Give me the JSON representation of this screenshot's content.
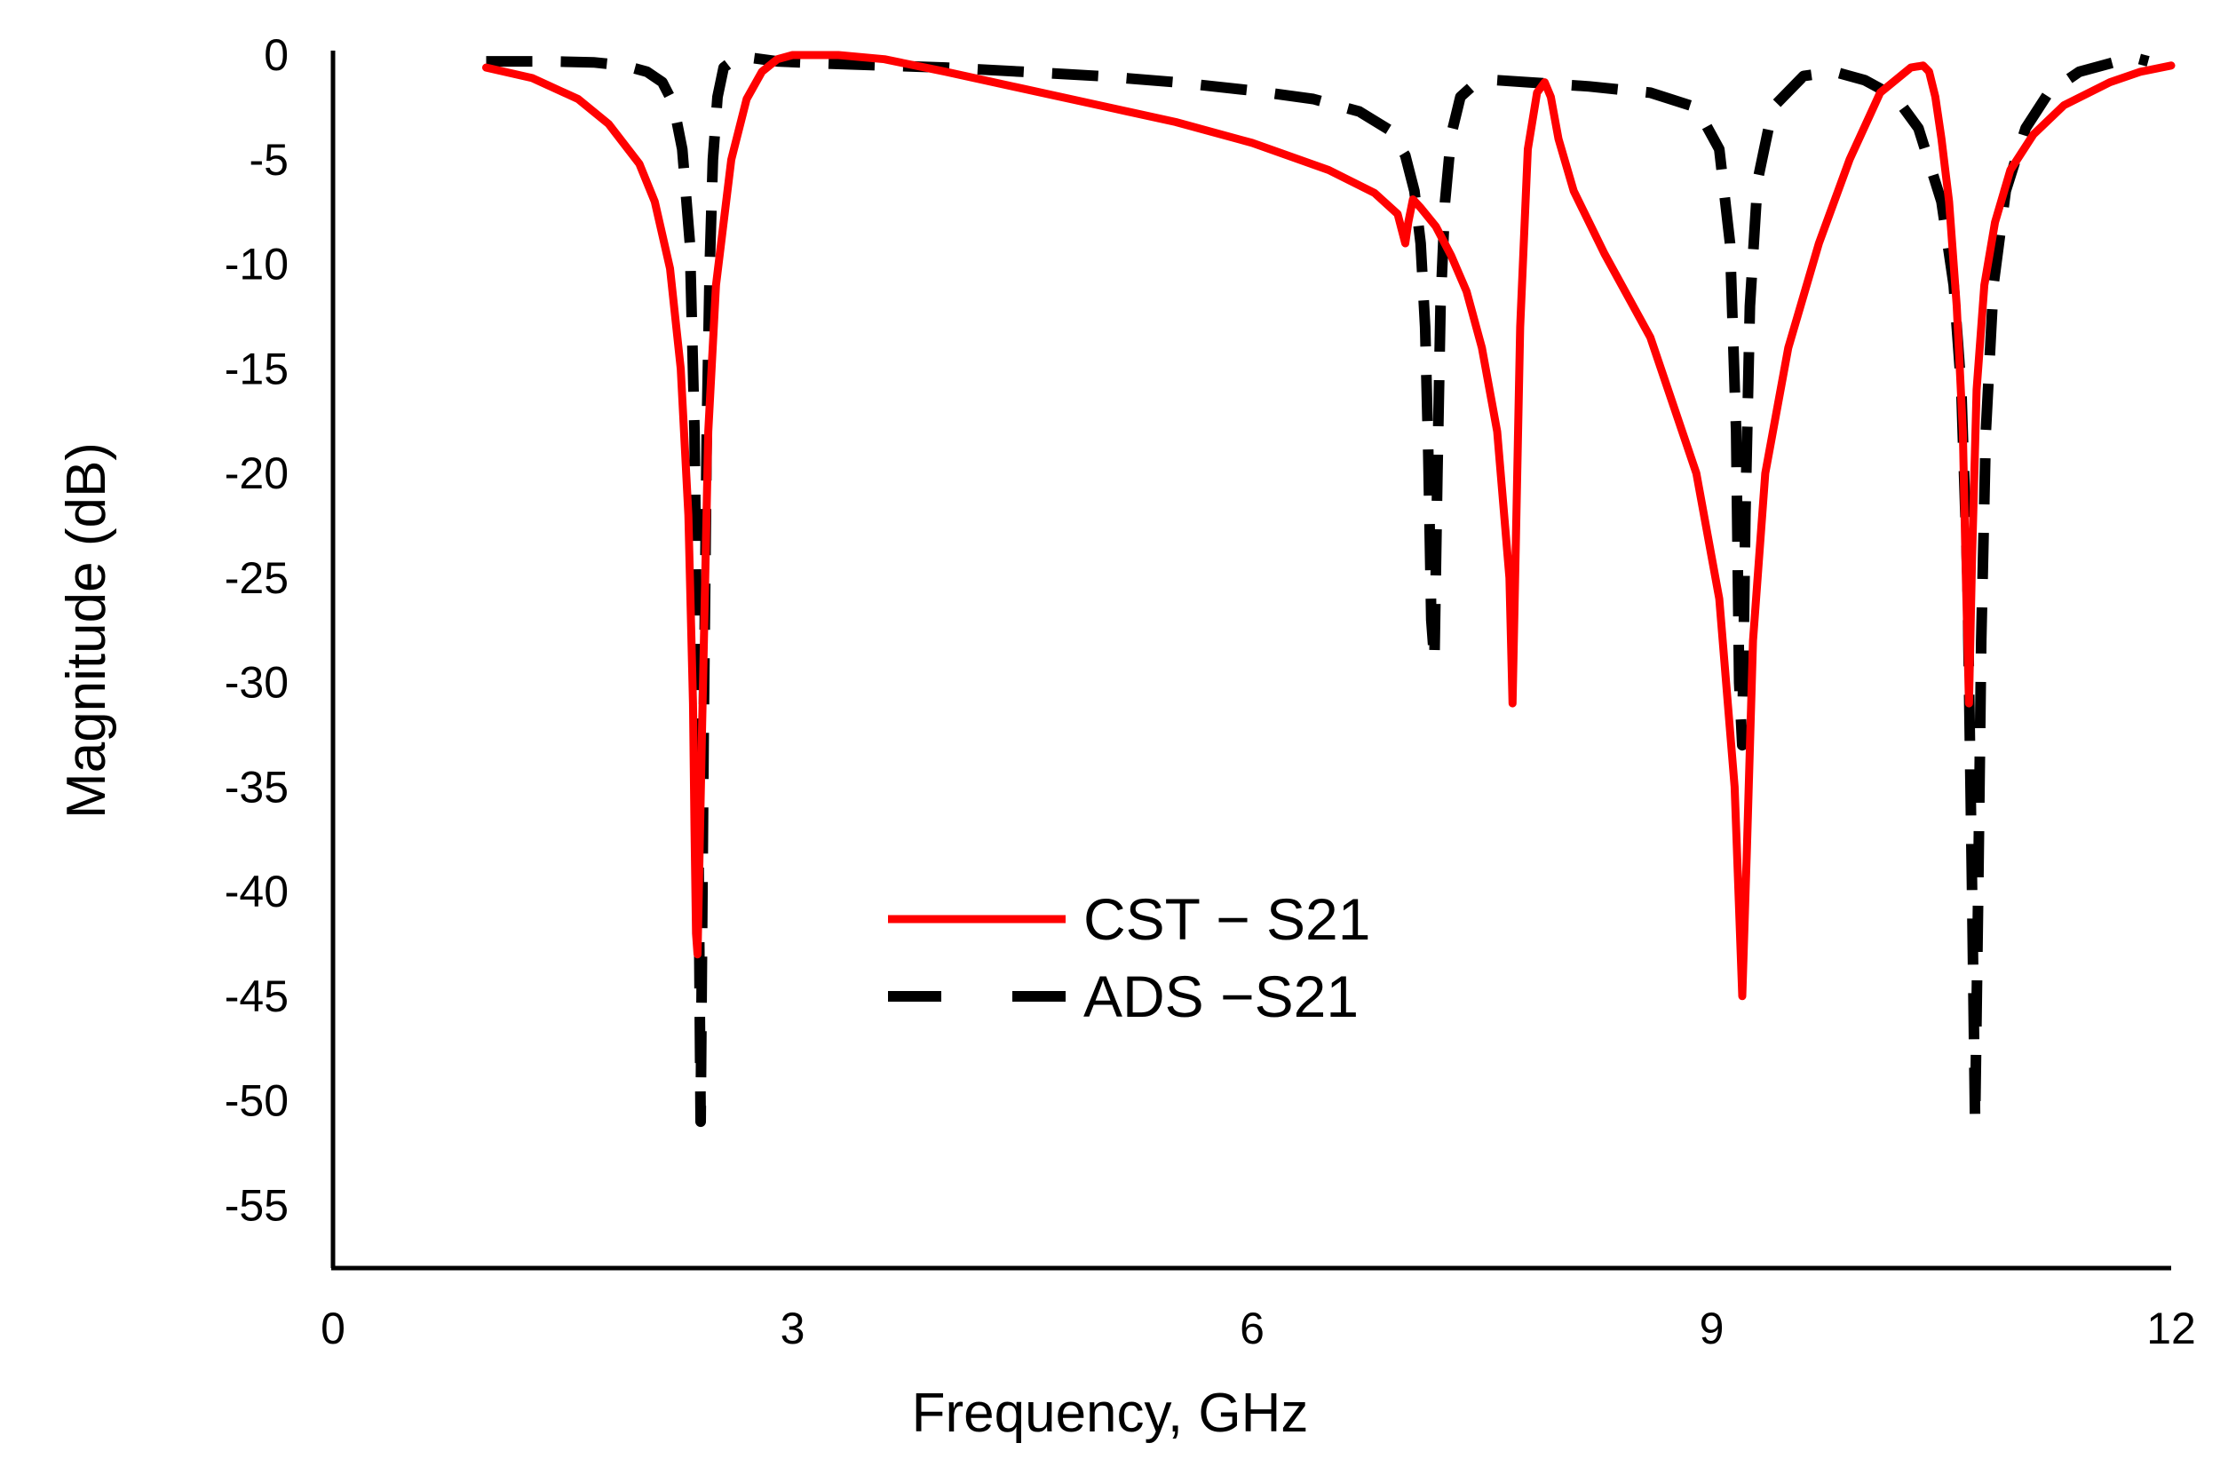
{
  "chart_data": {
    "type": "line",
    "title": "",
    "xlabel": "Frequency, GHz",
    "ylabel": "Magnitude (dB)",
    "xlim": [
      0,
      12
    ],
    "ylim": [
      -58,
      0
    ],
    "xticks": [
      0,
      3,
      6,
      9,
      12
    ],
    "yticks": [
      0,
      -5,
      -10,
      -15,
      -20,
      -25,
      -30,
      -35,
      -40,
      -45,
      -50,
      -55
    ],
    "grid": false,
    "legend_position": "center",
    "series": [
      {
        "name": "CST − S21",
        "color": "#ff0000",
        "style": "solid",
        "x": [
          1.0,
          1.3,
          1.6,
          1.8,
          2.0,
          2.1,
          2.2,
          2.27,
          2.32,
          2.35,
          2.36,
          2.37,
          2.38,
          2.41,
          2.45,
          2.5,
          2.6,
          2.7,
          2.8,
          2.9,
          3.0,
          3.1,
          3.3,
          3.6,
          4.0,
          4.5,
          5.0,
          5.5,
          6.0,
          6.5,
          6.8,
          6.95,
          7.0,
          7.02,
          7.05,
          7.1,
          7.2,
          7.3,
          7.4,
          7.5,
          7.6,
          7.68,
          7.7,
          7.72,
          7.75,
          7.8,
          7.86,
          7.91,
          7.95,
          8.0,
          8.1,
          8.3,
          8.6,
          8.9,
          9.05,
          9.15,
          9.2,
          9.23,
          9.27,
          9.35,
          9.5,
          9.7,
          9.9,
          10.1,
          10.3,
          10.38,
          10.42,
          10.46,
          10.5,
          10.55,
          10.6,
          10.64,
          10.66,
          10.68,
          10.7,
          10.73,
          10.78,
          10.85,
          10.95,
          11.1,
          11.3,
          11.6,
          11.8,
          12.0
        ],
        "y": [
          -0.6,
          -1.1,
          -2.1,
          -3.3,
          -5.2,
          -7.0,
          -10.2,
          -15.0,
          -22.0,
          -31.0,
          -37.0,
          -42.0,
          -43.0,
          -32.0,
          -18.0,
          -11.0,
          -5.0,
          -2.1,
          -0.8,
          -0.2,
          0.0,
          0.0,
          0.0,
          -0.2,
          -0.8,
          -1.6,
          -2.4,
          -3.2,
          -4.2,
          -5.5,
          -6.6,
          -7.6,
          -9.0,
          -8.0,
          -6.9,
          -7.3,
          -8.2,
          -9.6,
          -11.3,
          -14.0,
          -18.0,
          -25.0,
          -31.0,
          -24.0,
          -13.0,
          -4.5,
          -1.8,
          -1.3,
          -2.0,
          -4.0,
          -6.5,
          -9.5,
          -13.5,
          -20.0,
          -26.0,
          -35.0,
          -45.0,
          -38.0,
          -28.0,
          -20.0,
          -14.0,
          -9.0,
          -5.0,
          -1.8,
          -0.6,
          -0.5,
          -0.8,
          -2.0,
          -4.0,
          -7.0,
          -12.0,
          -18.0,
          -25.0,
          -31.0,
          -24.0,
          -16.0,
          -11.0,
          -8.0,
          -5.5,
          -3.8,
          -2.4,
          -1.3,
          -0.8,
          -0.5
        ]
      },
      {
        "name": "ADS −S21",
        "color": "#000000",
        "style": "dashed",
        "x": [
          1.0,
          1.4,
          1.7,
          1.9,
          2.05,
          2.15,
          2.22,
          2.28,
          2.33,
          2.36,
          2.38,
          2.4,
          2.42,
          2.44,
          2.46,
          2.48,
          2.51,
          2.55,
          2.62,
          2.7,
          2.9,
          3.2,
          3.6,
          4.0,
          4.5,
          5.0,
          5.5,
          6.0,
          6.4,
          6.7,
          6.9,
          7.0,
          7.06,
          7.1,
          7.13,
          7.15,
          7.17,
          7.19,
          7.21,
          7.23,
          7.26,
          7.3,
          7.36,
          7.45,
          7.6,
          7.8,
          8.2,
          8.6,
          8.9,
          9.05,
          9.12,
          9.16,
          9.18,
          9.2,
          9.22,
          9.25,
          9.3,
          9.4,
          9.6,
          9.8,
          10.0,
          10.2,
          10.35,
          10.5,
          10.58,
          10.63,
          10.67,
          10.7,
          10.72,
          10.74,
          10.76,
          10.79,
          10.84,
          10.92,
          11.05,
          11.2,
          11.4,
          11.6,
          11.75,
          11.85
        ],
        "y": [
          -0.3,
          -0.3,
          -0.35,
          -0.5,
          -0.8,
          -1.3,
          -2.3,
          -4.5,
          -9.0,
          -18.0,
          -32.0,
          -51.0,
          -32.0,
          -18.0,
          -10.0,
          -5.0,
          -2.0,
          -0.6,
          -0.2,
          -0.1,
          -0.3,
          -0.4,
          -0.5,
          -0.6,
          -0.8,
          -1.0,
          -1.3,
          -1.7,
          -2.1,
          -2.7,
          -3.6,
          -4.8,
          -6.5,
          -9.0,
          -13.0,
          -19.0,
          -27.0,
          -29.0,
          -20.0,
          -12.0,
          -7.0,
          -3.8,
          -2.0,
          -1.4,
          -1.2,
          -1.3,
          -1.5,
          -1.8,
          -2.5,
          -4.5,
          -9.0,
          -18.0,
          -30.0,
          -33.0,
          -22.0,
          -12.0,
          -6.0,
          -2.5,
          -1.0,
          -0.8,
          -1.2,
          -2.0,
          -3.5,
          -7.0,
          -11.0,
          -16.0,
          -25.0,
          -40.0,
          -51.0,
          -40.0,
          -28.0,
          -18.0,
          -11.0,
          -6.5,
          -3.5,
          -1.8,
          -0.8,
          -0.4,
          -0.1,
          -0.3
        ]
      }
    ]
  }
}
